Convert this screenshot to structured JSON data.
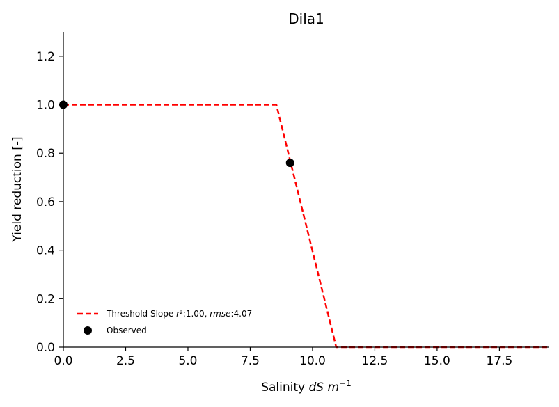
{
  "chart_data": {
    "type": "line",
    "title": "Dila1",
    "xlabel_prefix": "Salinity ",
    "xlabel_italic": "dS m",
    "xlabel_sup": "−1",
    "ylabel": "Yield reduction [-]",
    "xlim": [
      0,
      19.5
    ],
    "ylim": [
      0,
      1.3
    ],
    "xticks": [
      0,
      2.5,
      5,
      7.5,
      10,
      12.5,
      15,
      17.5
    ],
    "xtick_labels": [
      "0.0",
      "2.5",
      "5.0",
      "7.5",
      "10.0",
      "12.5",
      "15.0",
      "17.5"
    ],
    "yticks": [
      0,
      0.2,
      0.4,
      0.6,
      0.8,
      1.0,
      1.2
    ],
    "ytick_labels": [
      "0.0",
      "0.2",
      "0.4",
      "0.6",
      "0.8",
      "1.0",
      "1.2"
    ],
    "grid": false,
    "legend_position": "lower-left",
    "series": [
      {
        "type": "line",
        "style": "dashed",
        "color": "#ff0000",
        "x": [
          0,
          8.55,
          10.95,
          19.5
        ],
        "y": [
          1.0,
          1.0,
          0.0,
          0.0
        ],
        "legend": {
          "prefix": "Threshold Slope ",
          "r_symbol": "r",
          "r_text": "²:1.00, ",
          "rmse_symbol": "rmse",
          "rmse_text": ":4.07"
        }
      },
      {
        "type": "scatter",
        "color": "#000000",
        "name": "Observed",
        "x": [
          0,
          9.1
        ],
        "y": [
          1.0,
          0.76
        ]
      }
    ]
  }
}
